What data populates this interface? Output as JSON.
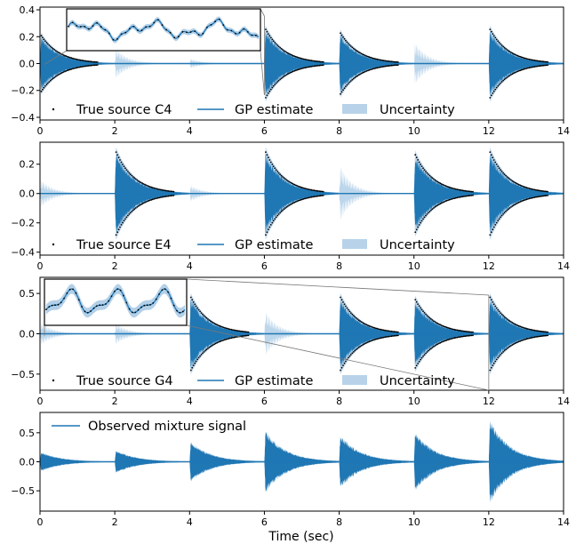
{
  "colors": {
    "estimate": "#1f77b4",
    "uncertainty": "#a6c8e4",
    "true_source": "#000000",
    "zoom_line": "#777777"
  },
  "xlabel": "Time (sec)",
  "chart_data": [
    {
      "type": "line",
      "panel": 1,
      "xlim": [
        0,
        14
      ],
      "ylim": [
        -0.42,
        0.42
      ],
      "xticks": [
        0,
        2,
        4,
        6,
        8,
        10,
        12,
        14
      ],
      "yticks": [
        -0.4,
        -0.2,
        0.0,
        0.2,
        0.4
      ],
      "xtick_labels": [
        "0",
        "2",
        "4",
        "6",
        "8",
        "10",
        "12",
        "14"
      ],
      "ytick_labels": [
        "−0.4",
        "−0.2",
        "0.0",
        "0.2",
        "0.4"
      ],
      "note_source": "C4",
      "active_onsets": [
        0,
        6,
        8,
        12
      ],
      "active_amplitudes": [
        0.22,
        0.27,
        0.24,
        0.27
      ],
      "inactive_onsets": [
        2,
        4,
        10
      ],
      "inactive_uncertainty": [
        0.12,
        0.04,
        0.17
      ],
      "zoom_inset": {
        "x_range": [
          0,
          6
        ],
        "ylim": [
          -0.3,
          0.3
        ]
      },
      "legend": [
        {
          "kind": "dots",
          "label": "True source C4"
        },
        {
          "kind": "line",
          "label": "GP estimate"
        },
        {
          "kind": "patch",
          "label": "Uncertainty"
        }
      ]
    },
    {
      "type": "line",
      "panel": 2,
      "xlim": [
        0,
        14
      ],
      "ylim": [
        -0.42,
        0.35
      ],
      "xticks": [
        0,
        2,
        4,
        6,
        8,
        10,
        12,
        14
      ],
      "yticks": [
        -0.4,
        -0.2,
        0.0,
        0.2
      ],
      "xtick_labels": [
        "0",
        "2",
        "4",
        "6",
        "8",
        "10",
        "12",
        "14"
      ],
      "ytick_labels": [
        "−0.4",
        "−0.2",
        "0.0",
        "0.2"
      ],
      "note_source": "E4",
      "active_onsets": [
        2,
        6,
        10,
        12
      ],
      "active_amplitudes": [
        0.3,
        0.3,
        0.28,
        0.3
      ],
      "inactive_onsets": [
        0,
        4,
        8
      ],
      "inactive_uncertainty": [
        0.1,
        0.06,
        0.2
      ],
      "legend": [
        {
          "kind": "dots",
          "label": "True source E4"
        },
        {
          "kind": "line",
          "label": "GP estimate"
        },
        {
          "kind": "patch",
          "label": "Uncertainty"
        }
      ]
    },
    {
      "type": "line",
      "panel": 3,
      "xlim": [
        0,
        14
      ],
      "ylim": [
        -0.7,
        0.7
      ],
      "xticks": [
        0,
        2,
        4,
        6,
        8,
        10,
        12,
        14
      ],
      "yticks": [
        -0.5,
        0.0,
        0.5
      ],
      "xtick_labels": [
        "0",
        "2",
        "4",
        "6",
        "8",
        "10",
        "12",
        "14"
      ],
      "ytick_labels": [
        "−0.5",
        "0.0",
        "0.5"
      ],
      "note_source": "G4",
      "active_onsets": [
        4,
        8,
        10,
        12
      ],
      "active_amplitudes": [
        0.48,
        0.48,
        0.45,
        0.48
      ],
      "inactive_onsets": [
        0,
        2,
        6
      ],
      "inactive_uncertainty": [
        0.15,
        0.14,
        0.3
      ],
      "zoom_inset": {
        "x_range": [
          0,
          12
        ],
        "ylim": [
          -0.55,
          0.55
        ]
      },
      "legend": [
        {
          "kind": "dots",
          "label": "True source G4"
        },
        {
          "kind": "line",
          "label": "GP estimate"
        },
        {
          "kind": "patch",
          "label": "Uncertainty"
        }
      ]
    },
    {
      "type": "line",
      "panel": 4,
      "xlim": [
        0,
        14
      ],
      "ylim": [
        -0.85,
        0.85
      ],
      "xticks": [
        0,
        2,
        4,
        6,
        8,
        10,
        12,
        14
      ],
      "yticks": [
        -0.5,
        0.0,
        0.5
      ],
      "xtick_labels": [
        "0",
        "2",
        "4",
        "6",
        "8",
        "10",
        "12",
        "14"
      ],
      "ytick_labels": [
        "−0.5",
        "0.0",
        "0.5"
      ],
      "onsets": [
        0,
        2,
        4,
        6,
        8,
        10,
        12
      ],
      "amplitudes": [
        0.18,
        0.22,
        0.38,
        0.58,
        0.5,
        0.55,
        0.78
      ],
      "legend": [
        {
          "kind": "line",
          "label": "Observed mixture signal"
        }
      ]
    }
  ]
}
